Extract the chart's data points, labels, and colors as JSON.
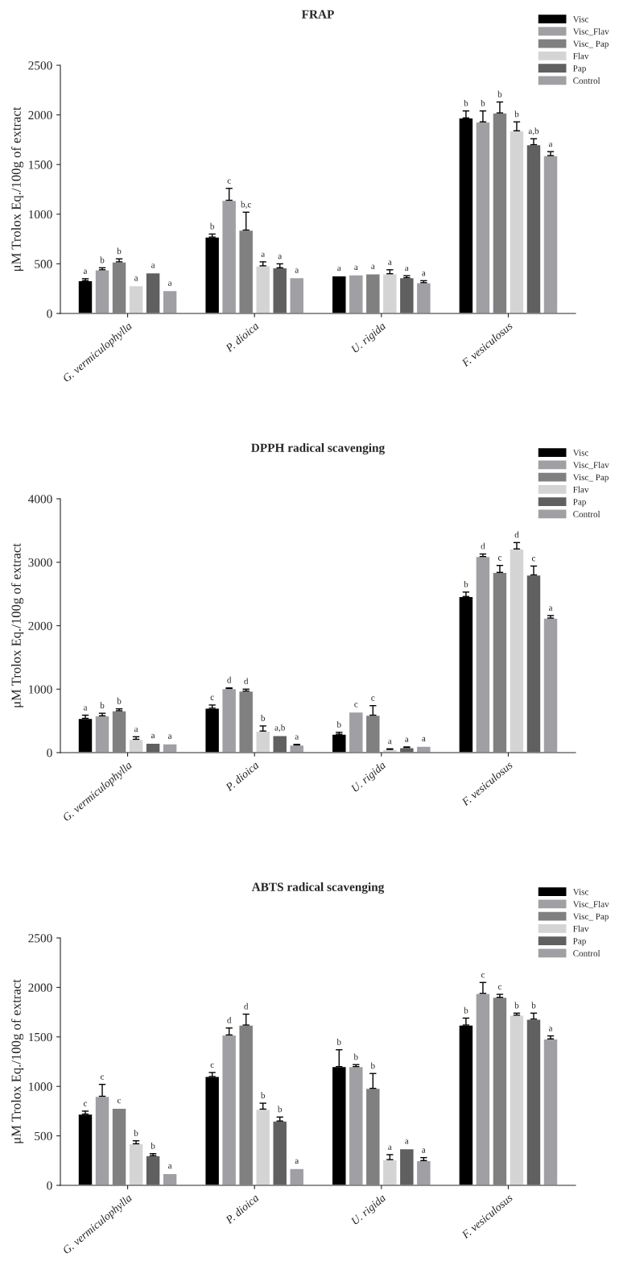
{
  "chart_data": [
    {
      "type": "bar",
      "title": "FRAP",
      "ylabel": "μM Trolox Eq./100g of extract",
      "categories": [
        "G. vermiculophylla",
        "P. dioica",
        "U. rigida",
        "F. vesiculosus"
      ],
      "ylim": [
        0,
        2500
      ],
      "yticks": [
        0,
        500,
        1000,
        1500,
        2000,
        2500
      ],
      "legend": "top right",
      "series": [
        {
          "name": "Visc",
          "color": "#000000",
          "values": [
            330,
            770,
            380,
            1970
          ],
          "errors": [
            20,
            30,
            null,
            70
          ],
          "value_labels": [
            "a",
            "b",
            "a",
            "b"
          ]
        },
        {
          "name": "Visc_Flav",
          "color": "#a0a0a4",
          "values": [
            440,
            1140,
            390,
            1930
          ],
          "errors": [
            20,
            120,
            null,
            110
          ],
          "value_labels": [
            "b",
            "c",
            "a",
            "b"
          ]
        },
        {
          "name": "Visc_ Pap",
          "color": "#808080",
          "values": [
            520,
            840,
            400,
            2020
          ],
          "errors": [
            30,
            180,
            null,
            110
          ],
          "value_labels": [
            "b",
            "b,c",
            "a",
            "b"
          ]
        },
        {
          "name": "Flav",
          "color": "#d4d4d4",
          "values": [
            280,
            480,
            400,
            1840
          ],
          "errors": [
            null,
            40,
            40,
            90
          ],
          "value_labels": [
            "a",
            "a",
            "a",
            "b"
          ]
        },
        {
          "name": "Pap",
          "color": "#606060",
          "values": [
            410,
            460,
            360,
            1700
          ],
          "errors": [
            null,
            40,
            20,
            60
          ],
          "value_labels": [
            "a",
            "a",
            "a",
            "a,b"
          ]
        },
        {
          "name": "Control",
          "color": "#a0a0a4",
          "values": [
            230,
            360,
            310,
            1590
          ],
          "errors": [
            null,
            null,
            20,
            40
          ],
          "value_labels": [
            "a",
            "a",
            "a",
            "a"
          ]
        }
      ]
    },
    {
      "type": "bar",
      "title": "DPPH radical scavenging",
      "ylabel": "μM Trolox Eq./100g of extract",
      "categories": [
        "G. vermiculophylla",
        "P. dioica",
        "U. rigida",
        "F. vesiculosus"
      ],
      "ylim": [
        0,
        4000
      ],
      "yticks": [
        0,
        1000,
        2000,
        3000,
        4000
      ],
      "legend": "top right",
      "series": [
        {
          "name": "Visc",
          "color": "#000000",
          "values": [
            540,
            700,
            290,
            2460
          ],
          "errors": [
            50,
            50,
            30,
            70
          ],
          "value_labels": [
            "a",
            "c",
            "b",
            "b"
          ]
        },
        {
          "name": "Visc_Flav",
          "color": "#a0a0a4",
          "values": [
            580,
            1010,
            640,
            3090
          ],
          "errors": [
            40,
            10,
            null,
            40
          ],
          "value_labels": [
            "b",
            "d",
            "c",
            "d"
          ]
        },
        {
          "name": "Visc_ Pap",
          "color": "#808080",
          "values": [
            660,
            970,
            590,
            2840
          ],
          "errors": [
            30,
            30,
            150,
            110
          ],
          "value_labels": [
            "b",
            "d",
            "c",
            "c"
          ]
        },
        {
          "name": "Flav",
          "color": "#d4d4d4",
          "values": [
            210,
            340,
            50,
            3210
          ],
          "errors": [
            40,
            80,
            10,
            100
          ],
          "value_labels": [
            "a",
            "b",
            "a",
            "d"
          ]
        },
        {
          "name": "Pap",
          "color": "#606060",
          "values": [
            150,
            270,
            80,
            2800
          ],
          "errors": [
            null,
            null,
            10,
            140
          ],
          "value_labels": [
            "a",
            "a,b",
            "a",
            "c"
          ]
        },
        {
          "name": "Control",
          "color": "#a0a0a4",
          "values": [
            140,
            120,
            100,
            2120
          ],
          "errors": [
            null,
            10,
            null,
            40
          ],
          "value_labels": [
            "a",
            "a",
            "a",
            "a"
          ]
        }
      ]
    },
    {
      "type": "bar",
      "title": "ABTS radical scavenging",
      "ylabel": "μM Trolox Eq./100g of extract",
      "categories": [
        "G. vermiculophylla",
        "P. dioica",
        "U. rigida",
        "F. vesiculosus"
      ],
      "ylim": [
        0,
        2500
      ],
      "yticks": [
        0,
        500,
        1000,
        1500,
        2000,
        2500
      ],
      "legend": "top right",
      "series": [
        {
          "name": "Visc",
          "color": "#000000",
          "values": [
            720,
            1100,
            1200,
            1620
          ],
          "errors": [
            30,
            40,
            170,
            70
          ],
          "value_labels": [
            "c",
            "c",
            "b",
            "b"
          ]
        },
        {
          "name": "Visc_Flav",
          "color": "#a0a0a4",
          "values": [
            900,
            1520,
            1200,
            1940
          ],
          "errors": [
            120,
            70,
            20,
            110
          ],
          "value_labels": [
            "c",
            "d",
            "b",
            "c"
          ]
        },
        {
          "name": "Visc_ Pap",
          "color": "#808080",
          "values": [
            780,
            1620,
            980,
            1900
          ],
          "errors": [
            null,
            110,
            150,
            30
          ],
          "value_labels": [
            "c",
            "d",
            "b",
            "c"
          ]
        },
        {
          "name": "Flav",
          "color": "#d4d4d4",
          "values": [
            420,
            770,
            260,
            1720
          ],
          "errors": [
            30,
            60,
            50,
            20
          ],
          "value_labels": [
            "b",
            "b",
            "a",
            "b"
          ]
        },
        {
          "name": "Pap",
          "color": "#606060",
          "values": [
            300,
            650,
            370,
            1680
          ],
          "errors": [
            20,
            40,
            null,
            60
          ],
          "value_labels": [
            "b",
            "b",
            "a",
            "b"
          ]
        },
        {
          "name": "Control",
          "color": "#a0a0a4",
          "values": [
            120,
            170,
            250,
            1480
          ],
          "errors": [
            null,
            null,
            30,
            30
          ],
          "value_labels": [
            "a",
            "a",
            "a",
            "a"
          ]
        }
      ]
    }
  ]
}
